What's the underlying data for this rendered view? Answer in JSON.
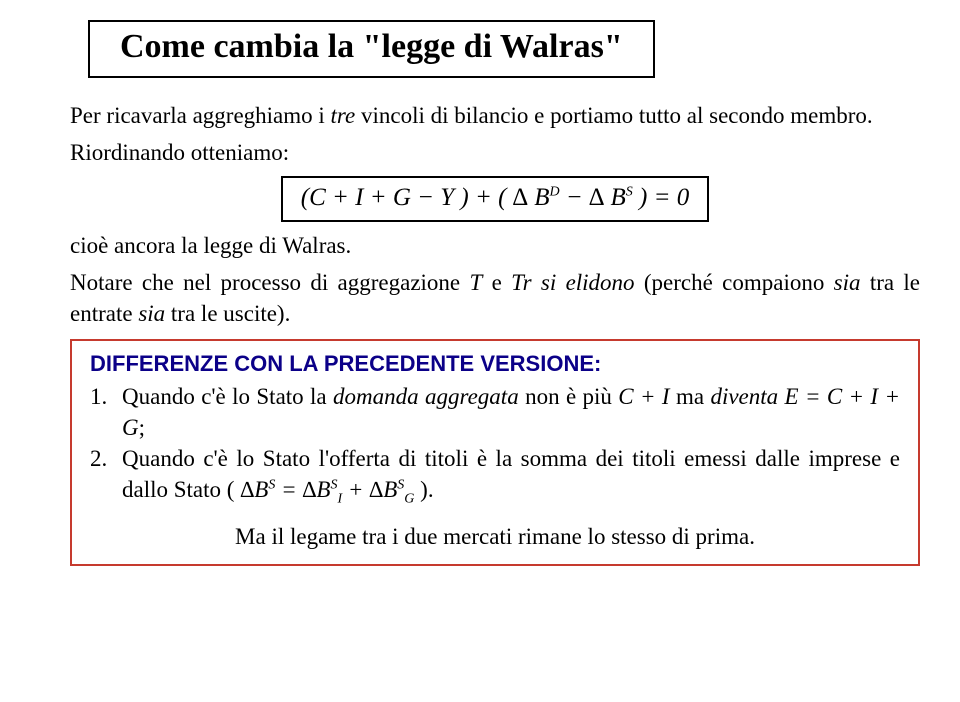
{
  "title": "Come cambia la \"legge di Walras\"",
  "p1_a": "Per ricavarla aggreghiamo i ",
  "p1_tre": "tre",
  "p1_b": " vincoli di bilancio e portiamo tutto al secondo membro.",
  "p2": "Riordinando otteniamo:",
  "formula": {
    "left": "(C + I  + G − Y ) + ( ∆ B",
    "supD": "D",
    "mid": " − ∆ B",
    "supS": "S",
    "right": " ) = 0"
  },
  "p3": "cioè ancora la legge di Walras.",
  "p4_a": "Notare che nel processo di aggregazione ",
  "p4_T": "T",
  "p4_b": " e ",
  "p4_Tr": "Tr",
  "p4_c": " ",
  "p4_elidono": "si elidono",
  "p4_d": " (perché compaiono ",
  "p4_sia1": "sia",
  "p4_e": " tra le entrate ",
  "p4_sia2": "sia",
  "p4_f": " tra le uscite).",
  "diff": {
    "heading_a": "DIFFERENZE CON LA PRECEDENTE VERSIONE",
    "heading_b": ":",
    "item1": {
      "num": "1.",
      "a": "Quando c'è lo Stato la ",
      "da": "domanda aggregata",
      "b": " non è più ",
      "CI": "C + I",
      "c": " ma ",
      "diventa": "diventa",
      "d": " ",
      "ECIG": "E = C + I + G",
      "e": ";"
    },
    "item2": {
      "num": "2.",
      "a": "Quando c'è lo Stato l'offerta di titoli è la somma dei titoli emessi dalle imprese e dallo Stato ( ",
      "eq": {
        "l1": "∆B",
        "sS1": "S",
        "mid": "  =  ∆B",
        "sS2": "S",
        "subI": "I",
        "plus": " + ∆B",
        "sS3": "S",
        "subG": "G"
      },
      "b": " )."
    }
  },
  "closing": "Ma il legame tra i due mercati rimane lo stesso di prima.",
  "colors": {
    "diff_border": "#c63a2e",
    "diff_heading": "#0b0088",
    "text": "#000000",
    "background": "#ffffff"
  }
}
